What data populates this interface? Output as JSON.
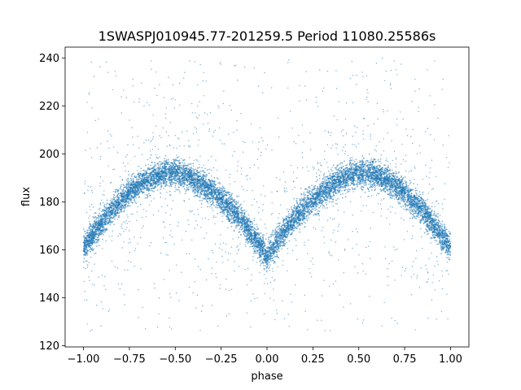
{
  "chart_data": {
    "type": "scatter",
    "title": "1SWASPJ010945.77-201259.5 Period 11080.25586s",
    "xlabel": "phase",
    "ylabel": "flux",
    "xlim": [
      -1.1,
      1.1
    ],
    "ylim": [
      119.5,
      244.5
    ],
    "xticks": [
      -1.0,
      -0.75,
      -0.5,
      -0.25,
      0.0,
      0.25,
      0.5,
      0.75,
      1.0
    ],
    "xtick_labels": [
      "−1.00",
      "−0.75",
      "−0.50",
      "−0.25",
      "0.00",
      "0.25",
      "0.50",
      "0.75",
      "1.00"
    ],
    "yticks": [
      120,
      140,
      160,
      180,
      200,
      220,
      240
    ],
    "ytick_labels": [
      "120",
      "140",
      "160",
      "180",
      "200",
      "220",
      "240"
    ],
    "grid": false,
    "point_color": "#1f77b4",
    "light_curve": {
      "phase": [
        -1.0,
        -0.95,
        -0.9,
        -0.85,
        -0.8,
        -0.75,
        -0.7,
        -0.65,
        -0.6,
        -0.55,
        -0.5,
        -0.45,
        -0.4,
        -0.35,
        -0.3,
        -0.25,
        -0.2,
        -0.15,
        -0.1,
        -0.05,
        0.0,
        0.05,
        0.1,
        0.15,
        0.2,
        0.25,
        0.3,
        0.35,
        0.4,
        0.45,
        0.5,
        0.55,
        0.6,
        0.65,
        0.7,
        0.75,
        0.8,
        0.85,
        0.9,
        0.95,
        1.0
      ],
      "flux": [
        161,
        166,
        171,
        176,
        180,
        184,
        187,
        189,
        191,
        192,
        192,
        191,
        189,
        187,
        184,
        181,
        177,
        173,
        168,
        163,
        157,
        163,
        168,
        173,
        177,
        181,
        184,
        187,
        189,
        191,
        192,
        192,
        191,
        189,
        187,
        184,
        180,
        176,
        171,
        166,
        161
      ],
      "scatter_width": 5,
      "outlier_range": [
        125,
        240
      ]
    }
  }
}
